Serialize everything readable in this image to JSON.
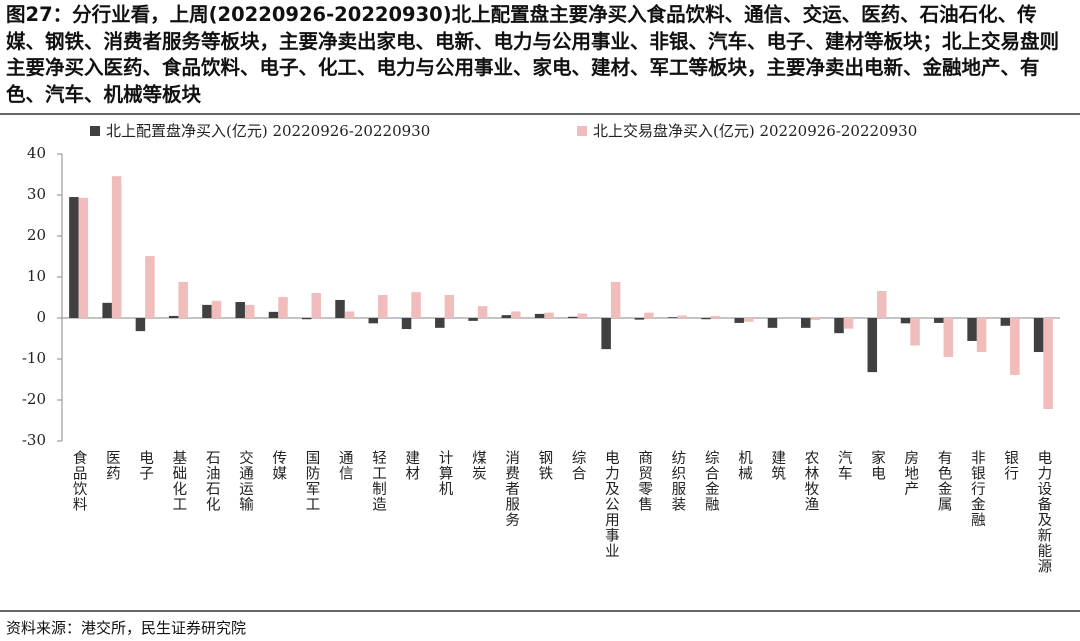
{
  "title": "图27：分行业看，上周(20220926-20220930)北上配置盘主要净买入食品饮料、通信、交运、医药、石油石化、传媒、钢铁、消费者服务等板块，主要净卖出家电、电新、电力与公用事业、非银、汽车、电子、建材等板块；北上交易盘则主要净买入医药、食品饮料、电子、化工、电力与公用事业、家电、建材、军工等板块，主要净卖出电新、金融地产、有色、汽车、机械等板块",
  "source": "资料来源：港交所，民生证券研究院",
  "chart_data": {
    "type": "bar",
    "categories": [
      "食品饮料",
      "医药",
      "电子",
      "基础化工",
      "石油石化",
      "交通运输",
      "传媒",
      "国防军工",
      "通信",
      "轻工制造",
      "建材",
      "计算机",
      "煤炭",
      "消费者服务",
      "钢铁",
      "综合",
      "电力及公用事业",
      "商贸零售",
      "纺织服装",
      "综合金融",
      "机械",
      "建筑",
      "农林牧渔",
      "汽车",
      "家电",
      "房地产",
      "有色金属",
      "非银行金融",
      "银行",
      "电力设备及新能源"
    ],
    "series": [
      {
        "name": "北上配置盘净买入(亿元) 20220926-20220930",
        "color": "#404040",
        "values": [
          29.5,
          3.7,
          -3.2,
          0.5,
          3.2,
          3.9,
          1.5,
          -0.3,
          4.4,
          -1.3,
          -2.7,
          -2.4,
          -0.7,
          0.7,
          1.0,
          0.3,
          -7.6,
          -0.4,
          0.2,
          -0.3,
          -1.2,
          -2.4,
          -2.4,
          -3.7,
          -13.2,
          -1.3,
          -1.2,
          -5.6,
          -1.9,
          -8.3
        ]
      },
      {
        "name": "北上交易盘净买入(亿元) 20220926-20220930",
        "color": "#f0bcbc",
        "values": [
          29.3,
          34.6,
          15.1,
          8.8,
          4.2,
          3.2,
          5.1,
          6.1,
          1.6,
          5.6,
          6.3,
          5.6,
          2.9,
          1.6,
          1.3,
          1.1,
          8.8,
          1.3,
          0.6,
          0.5,
          -0.9,
          0,
          -0.5,
          -2.6,
          6.6,
          -6.7,
          -9.5,
          -8.3,
          -13.9,
          -22.2
        ]
      }
    ],
    "ylim": [
      -30,
      40
    ],
    "yticks": [
      -30,
      -20,
      -10,
      0,
      10,
      20,
      30,
      40
    ]
  }
}
